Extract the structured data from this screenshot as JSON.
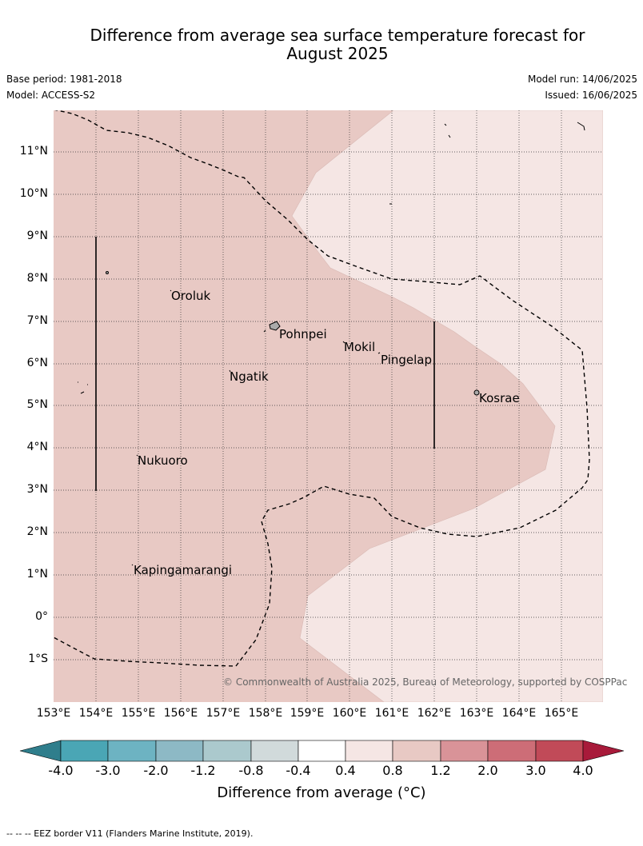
{
  "title_line1": "Difference from average sea surface temperature forecast for",
  "title_line2": "August 2025",
  "base_period": "Base period: 1981-2018",
  "model": "Model: ACCESS-S2",
  "model_run": "Model run: 14/06/2025",
  "issued": "Issued: 16/06/2025",
  "lat_labels": [
    "11°N",
    "10°N",
    "9°N",
    "8°N",
    "7°N",
    "6°N",
    "5°N",
    "4°N",
    "3°N",
    "2°N",
    "1°N",
    "0°",
    "1°S"
  ],
  "lon_labels": [
    "153°E",
    "154°E",
    "155°E",
    "156°E",
    "157°E",
    "158°E",
    "159°E",
    "160°E",
    "161°E",
    "162°E",
    "163°E",
    "164°E",
    "165°E"
  ],
  "places": {
    "oroluk": "Oroluk",
    "pohnpei": "Pohnpei",
    "mokil": "Mokil",
    "pingelap": "Pingelap",
    "ngatik": "Ngatik",
    "kosrae": "Kosrae",
    "nukuoro": "Nukuoro",
    "kapingamarangi": "Kapingamarangi"
  },
  "copyright": "© Commonwealth of Australia 2025, Bureau of Meteorology, supported by COSPPac",
  "colorbar": {
    "ticks": [
      "-4.0",
      "-3.0",
      "-2.0",
      "-1.2",
      "-0.8",
      "-0.4",
      "0.4",
      "0.8",
      "1.2",
      "2.0",
      "3.0",
      "4.0"
    ],
    "colors": [
      "#2f7e8c",
      "#4aa6b5",
      "#6db3c2",
      "#8db9c5",
      "#abc9cd",
      "#d1dadb",
      "#ffffff",
      "#f5e6e4",
      "#e8c9c4",
      "#d99398",
      "#cd6d77",
      "#c14a58",
      "#a81a3a"
    ],
    "label": "Difference from average (°C)"
  },
  "map_colors": {
    "warm_0_4_to_0_8": "#f5e6e4",
    "warm_0_8_to_1_2": "#e8c9c4"
  },
  "footnote": "-- -- -- EEZ border V11 (Flanders Marine Institute, 2019)."
}
